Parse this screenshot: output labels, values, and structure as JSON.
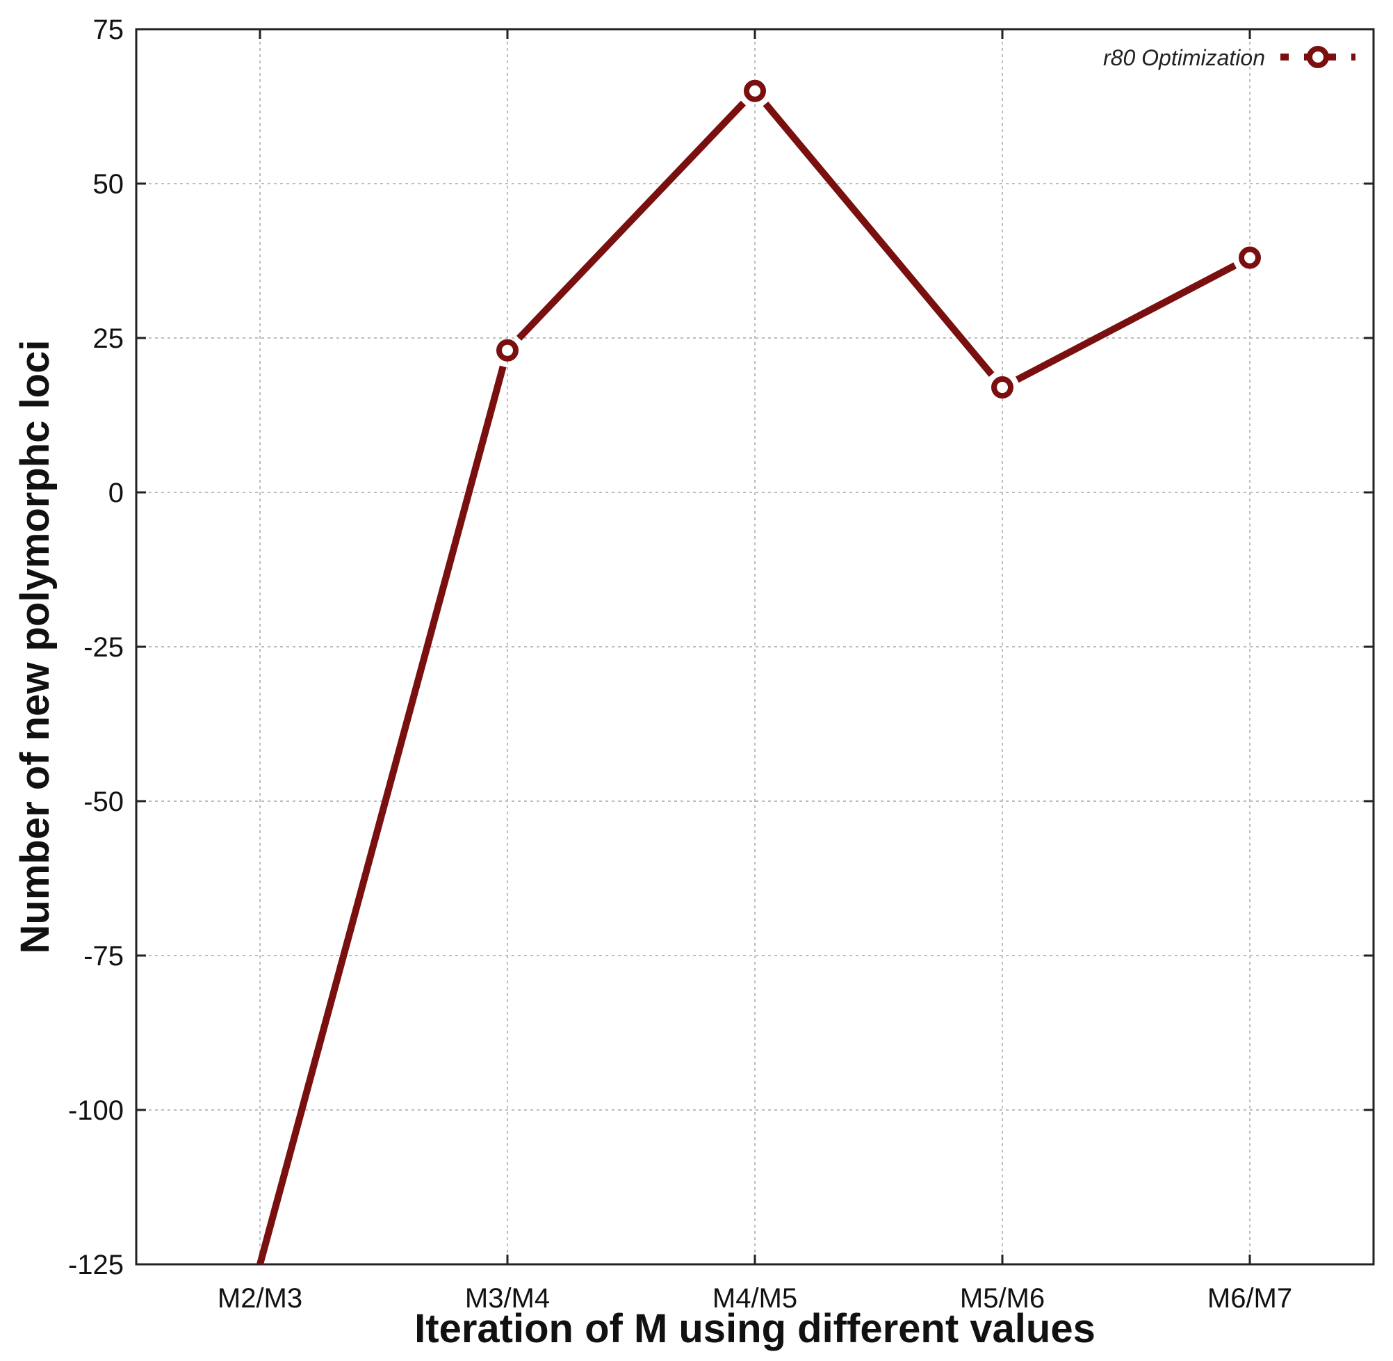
{
  "chart_data": {
    "type": "line",
    "categories": [
      "M2/M3",
      "M3/M4",
      "M4/M5",
      "M5/M6",
      "M6/M7"
    ],
    "series": [
      {
        "name": "r80 Optimization",
        "values": [
          -125,
          23,
          65,
          17,
          38
        ]
      }
    ],
    "xlabel": "Iteration of M using different values",
    "ylabel": "Number of new polymorphc loci",
    "ylim": [
      -125,
      75
    ],
    "yticks": [
      75,
      50,
      25,
      0,
      -25,
      -50,
      -75,
      -100,
      -125
    ],
    "grid": true,
    "legend_position": "top-right",
    "color": "#7a0f0f"
  }
}
